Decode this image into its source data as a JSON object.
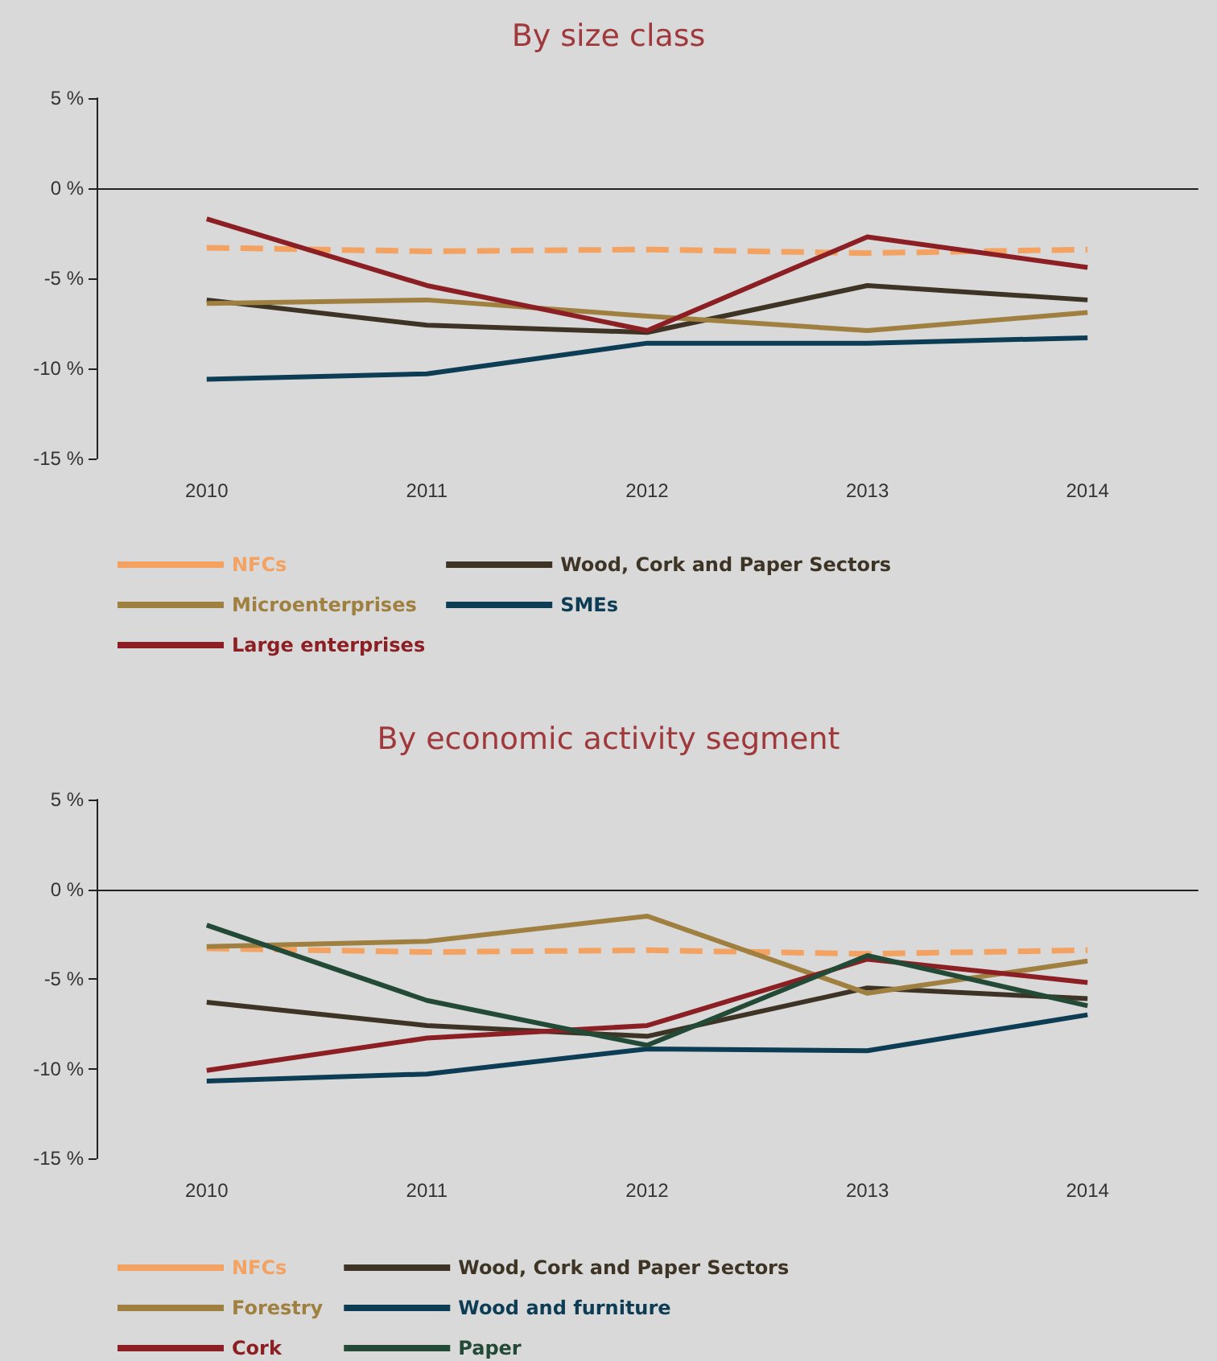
{
  "chart_data": [
    {
      "type": "line",
      "title": "By size class",
      "categories": [
        "2010",
        "2011",
        "2012",
        "2013",
        "2014"
      ],
      "ylim": [
        -15,
        5
      ],
      "yticks": [
        {
          "value": 5,
          "label": "5 %"
        },
        {
          "value": 0,
          "label": "0 %"
        },
        {
          "value": -5,
          "label": "-5 %"
        },
        {
          "value": -10,
          "label": "-10 %"
        },
        {
          "value": -15,
          "label": "-15 %"
        }
      ],
      "legend": "bottom",
      "marker": "none",
      "series": [
        {
          "name": "NFCs",
          "color": "#f4a261",
          "line_style": "dashed",
          "values": [
            -3.3,
            -3.5,
            -3.4,
            -3.6,
            -3.4
          ]
        },
        {
          "name": "Wood, Cork and Paper Sectors",
          "color": "#3d3426",
          "values": [
            -6.2,
            -7.6,
            -8.0,
            -5.4,
            -6.2
          ]
        },
        {
          "name": "Microenterprises",
          "color": "#a08040",
          "values": [
            -6.4,
            -6.2,
            -7.1,
            -7.9,
            -6.9
          ]
        },
        {
          "name": "SMEs",
          "color": "#0d3c55",
          "values": [
            -10.6,
            -10.3,
            -8.6,
            -8.6,
            -8.3
          ]
        },
        {
          "name": "Large enterprises",
          "color": "#8b1f24",
          "values": [
            -1.7,
            -5.4,
            -7.9,
            -2.7,
            -4.4
          ]
        }
      ]
    },
    {
      "type": "line",
      "title": "By economic activity segment",
      "categories": [
        "2010",
        "2011",
        "2012",
        "2013",
        "2014"
      ],
      "ylim": [
        -15,
        5
      ],
      "yticks": [
        {
          "value": 5,
          "label": "5 %"
        },
        {
          "value": 0,
          "label": "0 %"
        },
        {
          "value": -5,
          "label": "-5 %"
        },
        {
          "value": -10,
          "label": "-10 %"
        },
        {
          "value": -15,
          "label": "-15 %"
        }
      ],
      "legend": "bottom",
      "marker": "none",
      "series": [
        {
          "name": "NFCs",
          "color": "#f4a261",
          "line_style": "dashed",
          "values": [
            -3.3,
            -3.5,
            -3.4,
            -3.6,
            -3.4
          ]
        },
        {
          "name": "Wood, Cork and Paper Sectors",
          "color": "#3d3426",
          "values": [
            -6.3,
            -7.6,
            -8.2,
            -5.5,
            -6.1
          ]
        },
        {
          "name": "Forestry",
          "color": "#a08040",
          "values": [
            -3.2,
            -2.9,
            -1.5,
            -5.8,
            -4.0
          ]
        },
        {
          "name": "Wood and furniture",
          "color": "#0d3c55",
          "values": [
            -10.7,
            -10.3,
            -8.9,
            -9.0,
            -7.0
          ]
        },
        {
          "name": "Cork",
          "color": "#8b1f24",
          "values": [
            -10.1,
            -8.3,
            -7.6,
            -3.9,
            -5.2
          ]
        },
        {
          "name": "Paper",
          "color": "#234a36",
          "values": [
            -2.0,
            -6.2,
            -8.7,
            -3.7,
            -6.5
          ]
        }
      ]
    }
  ]
}
